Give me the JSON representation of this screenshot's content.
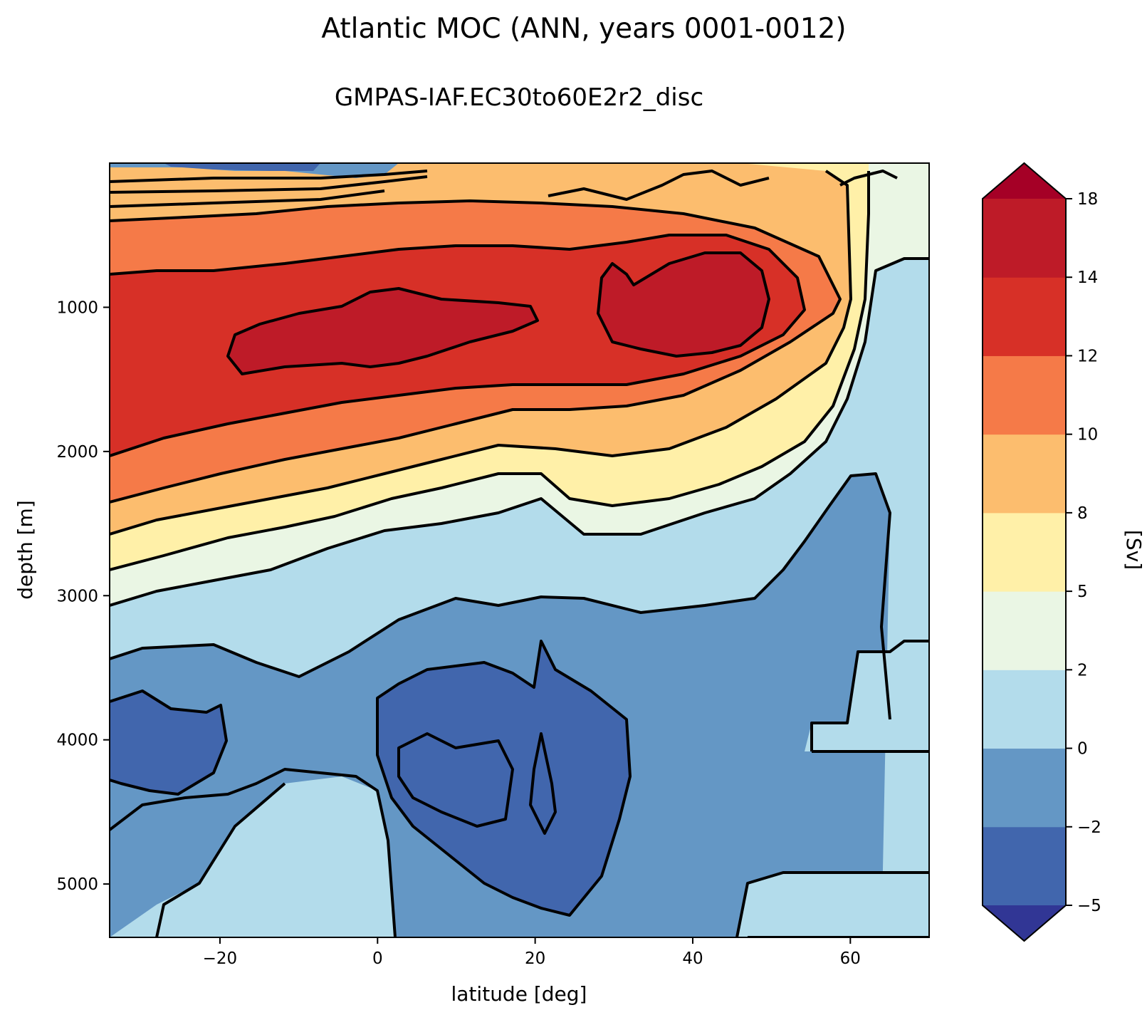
{
  "chart_data": {
    "type": "heatmap",
    "title": "Atlantic MOC (ANN, years 0001-0012)",
    "subtitle": "GMPAS-IAF.EC30to60E2r2_disc",
    "xlabel": "latitude [deg]",
    "ylabel": "depth [m]",
    "xlim": [
      -34,
      70
    ],
    "ylim": [
      5370,
      0
    ],
    "x_ticks": [
      -20,
      0,
      20,
      40,
      60
    ],
    "x_tick_labels": [
      "−20",
      "0",
      "20",
      "40",
      "60"
    ],
    "y_ticks": [
      1000,
      2000,
      3000,
      4000,
      5000
    ],
    "y_tick_labels": [
      "1000",
      "2000",
      "3000",
      "4000",
      "5000"
    ],
    "colorbar": {
      "label": "[Sv]",
      "levels": [
        -5,
        -2,
        0,
        2,
        5,
        8,
        10,
        12,
        14,
        18
      ],
      "tick_labels": [
        "−5",
        "−2",
        "0",
        "2",
        "5",
        "8",
        "10",
        "12",
        "14",
        "18"
      ],
      "colors": [
        "#4166ad",
        "#6497c5",
        "#b3dceb",
        "#eaf6e4",
        "#fff0a8",
        "#fcbd6e",
        "#f57a48",
        "#d73027",
        "#be1b28"
      ],
      "under_color": "#313695",
      "over_color": "#a50026",
      "extend": "both"
    },
    "contour_color": "#000000",
    "streamfunction_features": [
      {
        "name": "upper_cell_maximum_north",
        "lat": 38,
        "depth": 950,
        "value": 15
      },
      {
        "name": "upper_cell_maximum_south",
        "lat": 0,
        "depth": 1150,
        "value": 14.5
      },
      {
        "name": "abyssal_cell_minimum",
        "lat": 15,
        "depth": 4300,
        "value": -3
      },
      {
        "name": "abyssal_cell_minimum_south",
        "lat": -28,
        "depth": 4000,
        "value": -2.5
      }
    ]
  }
}
